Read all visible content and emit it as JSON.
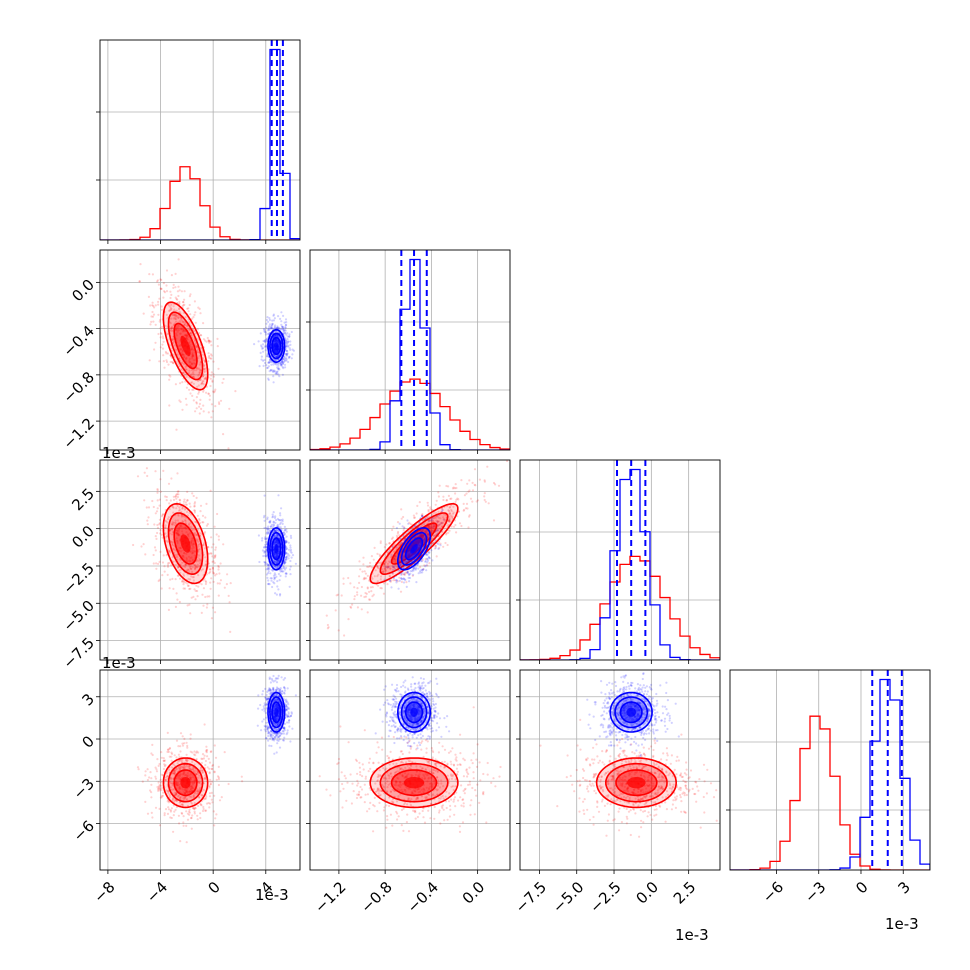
{
  "chart_data": {
    "type": "corner",
    "scale_note": "1e-3",
    "grid": true,
    "colors": {
      "red": "#ff0000",
      "blue": "#0000ff"
    },
    "parameters": [
      {
        "range": [
          -8.6,
          6.6
        ],
        "ticks": [
          -8,
          -4,
          0,
          4
        ],
        "tick_labels": [
          "−8",
          "−4",
          "0",
          "4"
        ]
      },
      {
        "range": [
          -1.45,
          0.28
        ],
        "ticks": [
          -1.2,
          -0.8,
          -0.4,
          0.0
        ],
        "tick_labels": [
          "−1.2",
          "−0.8",
          "−0.4",
          "0.0"
        ]
      },
      {
        "range": [
          -8.8,
          4.6
        ],
        "ticks": [
          -7.5,
          -5.0,
          -2.5,
          0.0,
          2.5
        ],
        "tick_labels": [
          "−7.5",
          "−5.0",
          "−2.5",
          "0.0",
          "2.5"
        ]
      },
      {
        "range": [
          -9.3,
          4.9
        ],
        "ticks": [
          -6,
          -3,
          0,
          3
        ],
        "tick_labels": [
          "−6",
          "−3",
          "0",
          "3"
        ]
      }
    ],
    "series": [
      {
        "color": "#ff0000",
        "means": [
          -2.1,
          -0.55,
          -1.0,
          -3.1
        ],
        "sds": [
          1.2,
          0.27,
          1.9,
          1.25
        ],
        "corr": {
          "0-1": -0.65,
          "0-2": -0.4,
          "0-3": 0.0,
          "1-2": 0.88,
          "1-3": 0.0,
          "2-3": 0.0
        }
      },
      {
        "color": "#0000ff",
        "means": [
          4.8,
          -0.55,
          -1.35,
          1.9
        ],
        "sds": [
          0.45,
          0.1,
          1.0,
          1.0
        ],
        "corr": {
          "0-1": 0.0,
          "0-2": 0.0,
          "0-3": 0.0,
          "1-2": 0.6,
          "1-3": 0.0,
          "2-3": 0.0
        },
        "quantile_lines": [
          [
            4.45,
            4.85,
            5.3
          ],
          [
            -0.66,
            -0.55,
            -0.44
          ],
          [
            -2.3,
            -1.35,
            -0.4
          ],
          [
            0.8,
            1.9,
            2.9
          ]
        ]
      }
    ]
  }
}
